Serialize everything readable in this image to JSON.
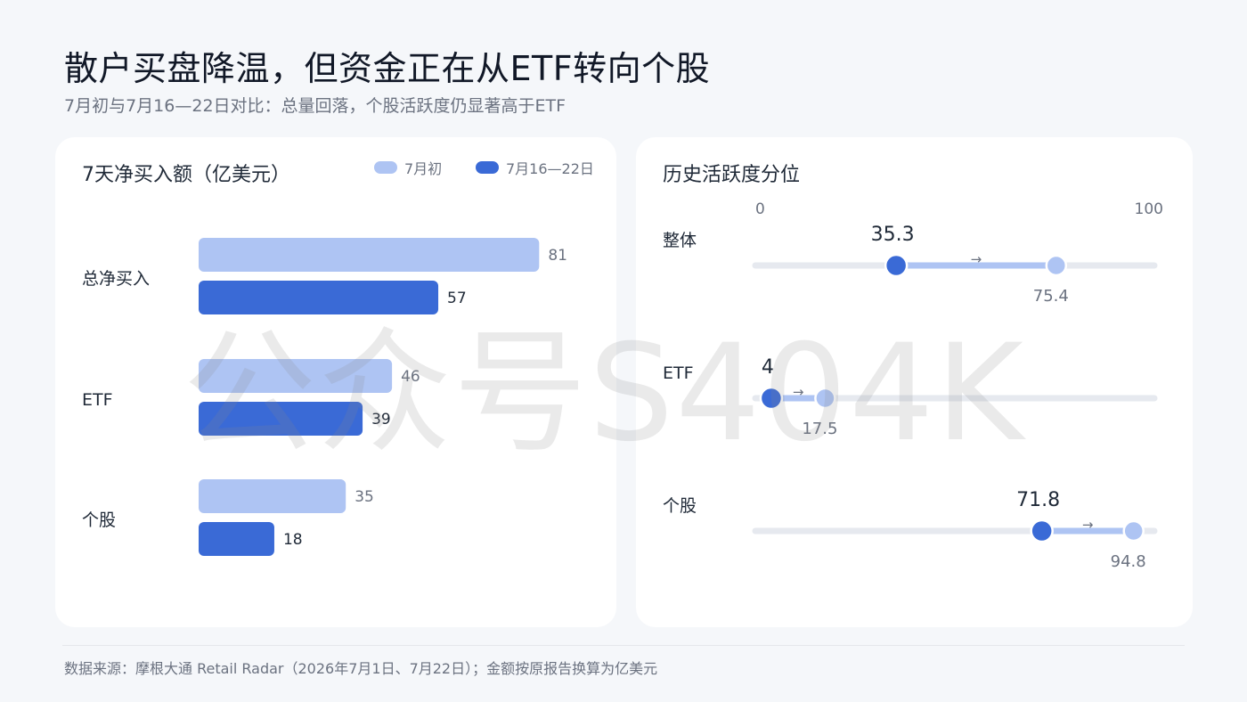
{
  "title": "散户买盘降温，但资金正在从ETF转向个股",
  "subtitle": "7月初与7月16—22日对比：总量回落，个股活跃度仍显著高于ETF",
  "watermark": "公众号S404K",
  "source": "数据来源：摩根大通 Retail Radar（2026年7月1日、7月22日）；金额按原报告换算为亿美元",
  "colors": {
    "early": "#aec4f3",
    "late": "#3a6ad6",
    "track": "#e6e9ef",
    "grid_text": "#6b7280"
  },
  "chart_data": [
    {
      "type": "bar",
      "orientation": "horizontal",
      "title": "7天净买入额（亿美元）",
      "categories": [
        "总净买入",
        "ETF",
        "个股"
      ],
      "series": [
        {
          "name": "7月初",
          "values": [
            81,
            46,
            35
          ]
        },
        {
          "name": "7月16—22日",
          "values": [
            57,
            39,
            18
          ]
        }
      ],
      "xlim": [
        0,
        100
      ],
      "legend_position": "top-right"
    },
    {
      "type": "dumbbell",
      "title": "历史活跃度分位",
      "axis_min_label": "0",
      "axis_max_label": "100",
      "xlim": [
        0,
        100
      ],
      "categories": [
        "整体",
        "ETF",
        "个股"
      ],
      "from_values": [
        35.3,
        4,
        71.8
      ],
      "to_values": [
        75.4,
        17.5,
        94.8
      ],
      "from_labels": [
        "35.3",
        "4",
        "71.8"
      ],
      "to_labels": [
        "75.4",
        "17.5",
        "94.8"
      ],
      "arrow_symbol": "→"
    }
  ]
}
